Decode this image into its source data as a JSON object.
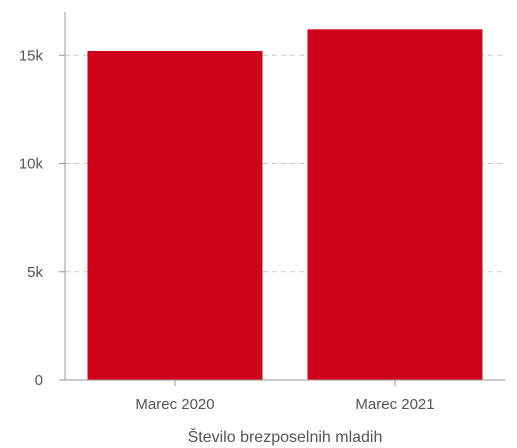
{
  "chart_data": {
    "type": "bar",
    "categories": [
      "Marec 2020",
      "Marec 2021"
    ],
    "values": [
      15200,
      16200
    ],
    "title": "",
    "xlabel": "Število brezposelnih mladih",
    "ylabel": "",
    "ylim": [
      0,
      17000
    ],
    "yticks": [
      0,
      5000,
      10000,
      15000
    ],
    "ytick_labels": [
      "0",
      "5k",
      "10k",
      "15k"
    ],
    "grid": true,
    "legend": "none",
    "bar_color": "#d0021b",
    "grid_color": "#cccccc",
    "axis_color": "#999999",
    "text_color": "#555555"
  }
}
